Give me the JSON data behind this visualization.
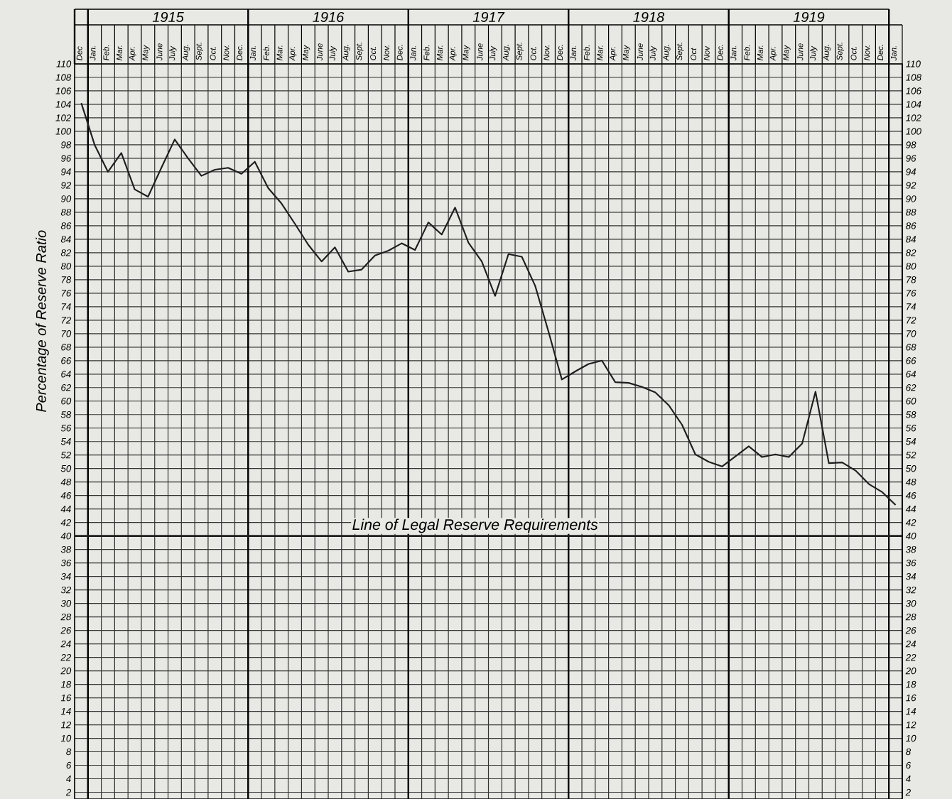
{
  "chart_data": {
    "type": "line",
    "ylabel": "Percentage of Reserve Ratio",
    "categories": [
      "Dec",
      "Jan.",
      "Feb.",
      "Mar.",
      "Apr.",
      "May",
      "June",
      "July",
      "Aug.",
      "Sept.",
      "Oct.",
      "Nov.",
      "Dec.",
      "Jan.",
      "Feb.",
      "Mar.",
      "Apr.",
      "May",
      "June",
      "July",
      "Aug.",
      "Sept.",
      "Oct.",
      "Nov.",
      "Dec.",
      "Jan.",
      "Feb.",
      "Mar.",
      "Apr.",
      "May",
      "June",
      "July",
      "Aug.",
      "Sept.",
      "Oct.",
      "Nov.",
      "Dec.",
      "Jan.",
      "Feb.",
      "Mar.",
      "Apr.",
      "May",
      "June",
      "July",
      "Aug.",
      "Sept.",
      "Oct",
      "Nov",
      "Dec.",
      "Jan.",
      "Feb.",
      "Mar.",
      "Apr.",
      "May",
      "June",
      "July",
      "Aug.",
      "Sept.",
      "Oct.",
      "Nov.",
      "Dec.",
      "Jan."
    ],
    "values": [
      104.2,
      98,
      94,
      96.8,
      91.4,
      90.3,
      94.6,
      98.8,
      96,
      93.4,
      94.3,
      94.6,
      93.7,
      95.5,
      91.6,
      89.3,
      86.3,
      83.2,
      80.7,
      82.8,
      79.2,
      79.5,
      81.6,
      82.3,
      83.4,
      82.4,
      86.5,
      84.7,
      88.7,
      83.5,
      80.7,
      75.6,
      81.8,
      81.4,
      77.1,
      70.3,
      63.2,
      64.4,
      65.5,
      66,
      62.8,
      62.7,
      62.1,
      61.3,
      59.4,
      56.5,
      52.1,
      51,
      50.3,
      51.8,
      53.3,
      51.7,
      52.1,
      51.7,
      53.7,
      61.4,
      50.8,
      50.9,
      49.7,
      47.7,
      46.5,
      44.6
    ],
    "color": "#1e1e1e",
    "ylim": [
      1,
      110
    ],
    "yticks": [
      2,
      4,
      6,
      8,
      10,
      12,
      14,
      16,
      18,
      20,
      22,
      24,
      26,
      28,
      30,
      32,
      34,
      36,
      38,
      40,
      42,
      44,
      46,
      48,
      50,
      52,
      54,
      56,
      58,
      60,
      62,
      64,
      66,
      68,
      70,
      72,
      74,
      76,
      78,
      80,
      82,
      84,
      86,
      88,
      90,
      92,
      94,
      96,
      98,
      100,
      102,
      104,
      106,
      108,
      110
    ],
    "y2lim": [
      1,
      110
    ],
    "y2ticks": [
      2,
      4,
      6,
      8,
      10,
      12,
      14,
      16,
      18,
      20,
      22,
      24,
      26,
      28,
      30,
      32,
      34,
      36,
      38,
      40,
      42,
      44,
      46,
      48,
      50,
      52,
      54,
      56,
      58,
      60,
      62,
      64,
      66,
      68,
      70,
      72,
      74,
      76,
      78,
      80,
      82,
      84,
      86,
      88,
      90,
      92,
      94,
      96,
      98,
      100,
      102,
      104,
      106,
      108,
      110
    ],
    "ref_lines": [
      {
        "axis": "y",
        "value": 40,
        "label": "Line of Legal Reserve Requirements",
        "color": "#1e1e1e"
      }
    ],
    "annotations": [
      "1915",
      "1916",
      "1917",
      "1918",
      "1919"
    ],
    "grid": true,
    "marker": "none",
    "line_style": "solid"
  }
}
